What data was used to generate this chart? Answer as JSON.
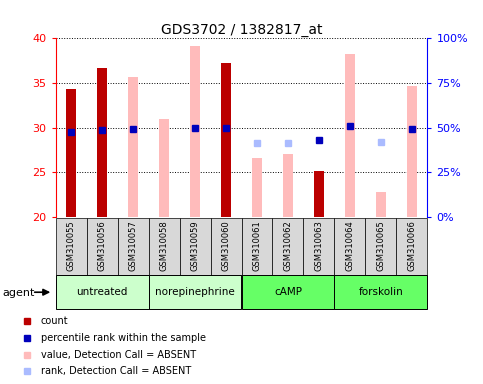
{
  "title": "GDS3702 / 1382817_at",
  "samples": [
    "GSM310055",
    "GSM310056",
    "GSM310057",
    "GSM310058",
    "GSM310059",
    "GSM310060",
    "GSM310061",
    "GSM310062",
    "GSM310063",
    "GSM310064",
    "GSM310065",
    "GSM310066"
  ],
  "count_values": [
    34.3,
    36.7,
    null,
    null,
    null,
    37.3,
    null,
    null,
    25.1,
    null,
    null,
    null
  ],
  "count_absent_values": [
    null,
    null,
    35.7,
    31.0,
    39.2,
    null,
    26.6,
    27.1,
    null,
    38.2,
    22.8,
    34.7
  ],
  "rank_present_values": [
    29.5,
    29.7,
    29.8,
    null,
    30.0,
    30.0,
    null,
    null,
    28.6,
    30.2,
    null,
    29.8
  ],
  "rank_absent_values": [
    null,
    null,
    null,
    null,
    null,
    null,
    28.3,
    28.3,
    null,
    null,
    28.4,
    null
  ],
  "ylim": [
    20,
    40
  ],
  "yticks_left": [
    20,
    25,
    30,
    35,
    40
  ],
  "right_ytick_vals": [
    20,
    25,
    30,
    35,
    40
  ],
  "right_ylabels": [
    "0%",
    "25%",
    "50%",
    "75%",
    "100%"
  ],
  "count_color": "#bb0000",
  "count_absent_color": "#ffbbbb",
  "rank_present_color": "#0000bb",
  "rank_absent_color": "#aabbff",
  "agent_groups": [
    {
      "label": "untreated",
      "start": 0,
      "end": 2,
      "color": "#ccffcc"
    },
    {
      "label": "norepinephrine",
      "start": 3,
      "end": 5,
      "color": "#ccffcc"
    },
    {
      "label": "cAMP",
      "start": 6,
      "end": 8,
      "color": "#66ff66"
    },
    {
      "label": "forskolin",
      "start": 9,
      "end": 11,
      "color": "#66ff66"
    }
  ],
  "bg_color": "#d8d8d8",
  "legend_items": [
    {
      "color": "#bb0000",
      "label": "count"
    },
    {
      "color": "#0000bb",
      "label": "percentile rank within the sample"
    },
    {
      "color": "#ffbbbb",
      "label": "value, Detection Call = ABSENT"
    },
    {
      "color": "#aabbff",
      "label": "rank, Detection Call = ABSENT"
    }
  ]
}
